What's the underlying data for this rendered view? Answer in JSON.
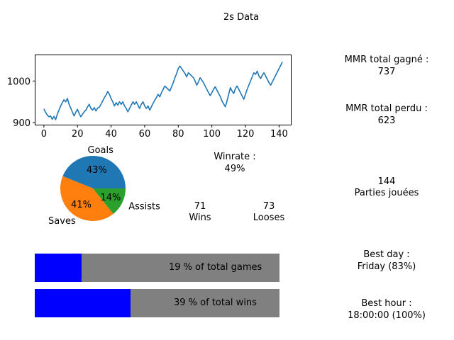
{
  "title": "2s Data",
  "stats": {
    "mmr_gained_label": "MMR total gagné :",
    "mmr_gained_value": "737",
    "mmr_lost_label": "MMR total perdu :",
    "mmr_lost_value": "623",
    "winrate_label": "Winrate :",
    "winrate_value": "49%",
    "wins_value": "71",
    "wins_label": "Wins",
    "losses_value": "73",
    "losses_label": "Looses",
    "games_value": "144",
    "games_label": "Parties jouées",
    "best_day_label": "Best day :",
    "best_day_value": "Friday (83%)",
    "best_hour_label": "Best hour :",
    "best_hour_value": "18:00:00 (100%)"
  },
  "chart_data": [
    {
      "type": "line",
      "title": "",
      "xlabel": "",
      "ylabel": "",
      "xlim": [
        -5,
        147
      ],
      "ylim": [
        895,
        1062
      ],
      "xticks": [
        0,
        20,
        40,
        60,
        80,
        100,
        120,
        140
      ],
      "yticks": [
        900,
        1000
      ],
      "grid": false,
      "color": "#1f77b4",
      "series": [
        {
          "x": [
            0,
            1,
            2,
            3,
            4,
            5,
            6,
            7,
            8,
            9,
            10,
            11,
            12,
            13,
            14,
            15,
            16,
            17,
            18,
            19,
            20,
            21,
            22,
            23,
            24,
            25,
            26,
            27,
            28,
            29,
            30,
            31,
            32,
            33,
            34,
            35,
            36,
            37,
            38,
            39,
            40,
            41,
            42,
            43,
            44,
            45,
            46,
            47,
            48,
            49,
            50,
            51,
            52,
            53,
            54,
            55,
            56,
            57,
            58,
            59,
            60,
            61,
            62,
            63,
            64,
            65,
            66,
            67,
            68,
            69,
            70,
            71,
            72,
            73,
            74,
            75,
            76,
            77,
            78,
            79,
            80,
            81,
            82,
            83,
            84,
            85,
            86,
            87,
            88,
            89,
            90,
            91,
            92,
            93,
            94,
            95,
            96,
            97,
            98,
            99,
            100,
            101,
            102,
            103,
            104,
            105,
            106,
            107,
            108,
            109,
            110,
            111,
            112,
            113,
            114,
            115,
            116,
            117,
            118,
            119,
            120,
            121,
            122,
            123,
            124,
            125,
            126,
            127,
            128,
            129,
            130,
            131,
            132,
            133,
            134,
            135,
            136,
            137,
            138,
            139,
            140,
            141,
            142
          ],
          "y": [
            933,
            925,
            918,
            914,
            916,
            908,
            915,
            907,
            920,
            930,
            940,
            948,
            955,
            950,
            958,
            944,
            935,
            925,
            916,
            925,
            932,
            922,
            914,
            920,
            926,
            930,
            938,
            944,
            934,
            930,
            936,
            928,
            935,
            937,
            944,
            952,
            960,
            966,
            975,
            968,
            958,
            950,
            940,
            948,
            942,
            950,
            944,
            950,
            940,
            934,
            926,
            934,
            942,
            950,
            944,
            950,
            942,
            934,
            944,
            950,
            940,
            934,
            940,
            930,
            938,
            946,
            954,
            960,
            968,
            962,
            972,
            980,
            988,
            984,
            980,
            976,
            986,
            996,
            1008,
            1018,
            1030,
            1036,
            1030,
            1024,
            1018,
            1010,
            1020,
            1016,
            1012,
            1008,
            1000,
            990,
            998,
            1008,
            1002,
            996,
            988,
            980,
            972,
            965,
            972,
            980,
            986,
            978,
            970,
            963,
            952,
            945,
            938,
            952,
            968,
            984,
            976,
            970,
            982,
            988,
            980,
            972,
            964,
            956,
            968,
            980,
            990,
            1000,
            1010,
            1020,
            1016,
            1024,
            1012,
            1006,
            1014,
            1020,
            1012,
            1004,
            996,
            990,
            998,
            1006,
            1014,
            1022,
            1030,
            1038,
            1046
          ]
        }
      ]
    },
    {
      "type": "pie",
      "title": "",
      "labels": [
        "Goals",
        "Saves",
        "Assists"
      ],
      "values": [
        43,
        41,
        14
      ],
      "pct_labels": [
        "43%",
        "41%",
        "14%"
      ],
      "colors": [
        "#1f77b4",
        "#ff7f0e",
        "#2ca02c"
      ]
    },
    {
      "type": "bar",
      "title": "",
      "orientation": "horizontal",
      "labels": [
        "19 % of total games",
        "39 % of total wins"
      ],
      "values": [
        19,
        39
      ],
      "max": 100,
      "fill_color": "#0000ff",
      "track_color": "#808080"
    }
  ]
}
